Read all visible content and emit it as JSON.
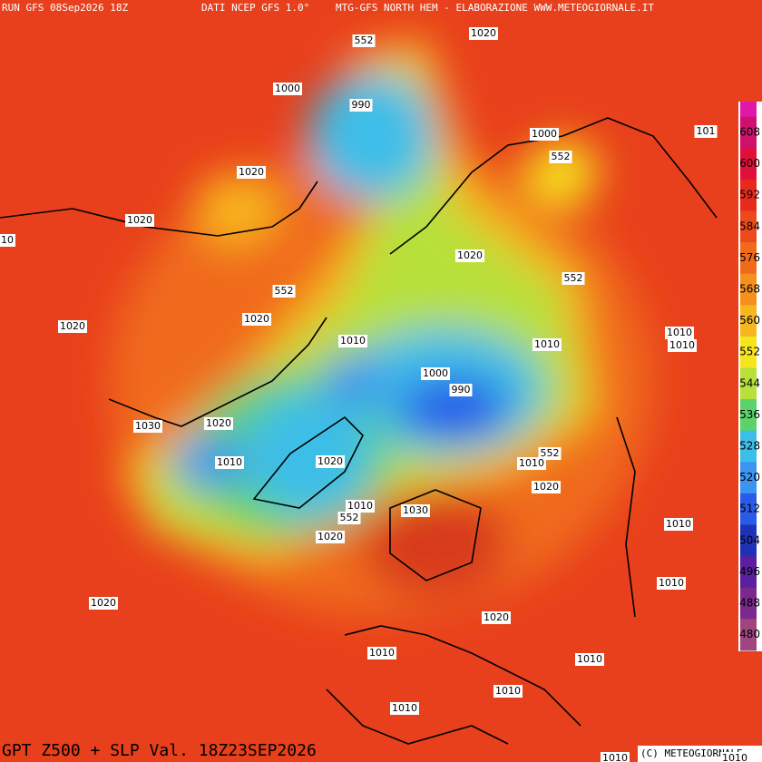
{
  "header": {
    "run": "RUN GFS 08Sep2026 18Z",
    "source": "DATI NCEP GFS 1.0°",
    "credit": "MTG-GFS NORTH HEM - ELABORAZIONE WWW.METEOGIORNALE.IT"
  },
  "footer": {
    "title": "GPT Z500 + SLP Val. 18Z23SEP2026",
    "copyright": "(C) METEOGIORNALE"
  },
  "legend": {
    "ticks": [
      608,
      600,
      592,
      584,
      576,
      568,
      560,
      552,
      544,
      536,
      528,
      520,
      512,
      504,
      496,
      488,
      480
    ],
    "colors": [
      "#d0106e",
      "#e0103a",
      "#e82a1c",
      "#ec4a1c",
      "#f06a1c",
      "#f5901c",
      "#f8b61e",
      "#f6e41e",
      "#b8e03a",
      "#5cd26a",
      "#3cbee8",
      "#3a94f0",
      "#2a5ae8",
      "#1e32b8",
      "#5a1e9e",
      "#7a2a8c",
      "#a0467e"
    ]
  },
  "contour_labels": [
    "552",
    "1020",
    "1000",
    "990",
    "1000",
    "552",
    "1020",
    "1020",
    "10",
    "1020",
    "552",
    "552",
    "1020",
    "1020",
    "1010",
    "1010",
    "1010",
    "1010",
    "1000",
    "990",
    "1030",
    "1020",
    "552",
    "1010",
    "1010",
    "1020",
    "1020",
    "1010",
    "552",
    "1030",
    "1020",
    "1010",
    "1020",
    "1010",
    "1020",
    "1010",
    "1010",
    "1010",
    "1010",
    "1010",
    "1010",
    "101"
  ]
}
